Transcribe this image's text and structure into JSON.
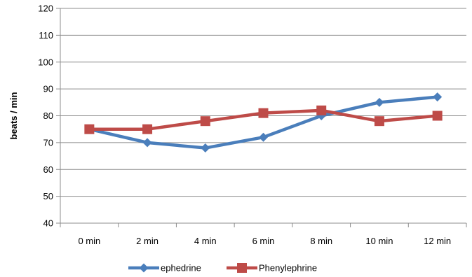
{
  "chart_data": {
    "type": "line",
    "title": "",
    "xlabel": "",
    "ylabel": "beats / min",
    "ylim": [
      40,
      120
    ],
    "yticks": [
      40,
      50,
      60,
      70,
      80,
      90,
      100,
      110,
      120
    ],
    "categories": [
      "0 min",
      "2 min",
      "4 min",
      "6 min",
      "8 min",
      "10 min",
      "12 min"
    ],
    "grid": true,
    "legend_position": "bottom",
    "series": [
      {
        "name": "ephedrine",
        "color": "#4a7ebb",
        "marker": "diamond",
        "values": [
          75,
          70,
          68,
          72,
          80,
          85,
          87
        ]
      },
      {
        "name": "Phenylephrine",
        "color": "#be4b48",
        "marker": "square",
        "values": [
          75,
          75,
          78,
          81,
          82,
          78,
          80
        ]
      }
    ]
  }
}
